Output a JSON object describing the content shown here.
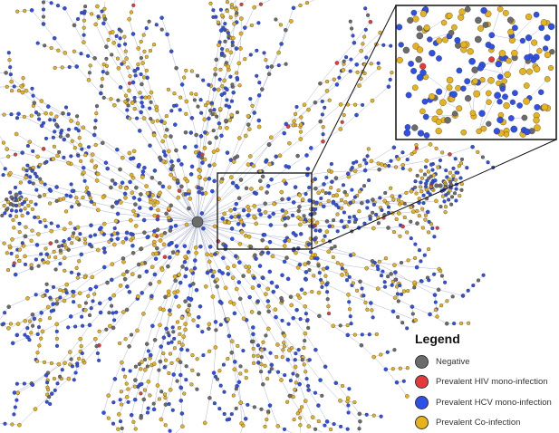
{
  "network": {
    "categories": [
      {
        "key": "negative",
        "color": "#6b6b6b"
      },
      {
        "key": "hiv",
        "color": "#e63a3a"
      },
      {
        "key": "hcv",
        "color": "#2e4fe8"
      },
      {
        "key": "coinfection",
        "color": "#e8b21c"
      }
    ],
    "edge_color": "#9aa3c9"
  },
  "legend": {
    "title": "Legend",
    "items": [
      {
        "label": "Negative",
        "color": "#6b6b6b"
      },
      {
        "label": "Prevalent HIV mono-infection",
        "color": "#e63a3a"
      },
      {
        "label": "Prevalent HCV mono-infection",
        "color": "#2e4fe8"
      },
      {
        "label": "Prevalent Co-infection",
        "color": "#e8b21c"
      }
    ]
  }
}
